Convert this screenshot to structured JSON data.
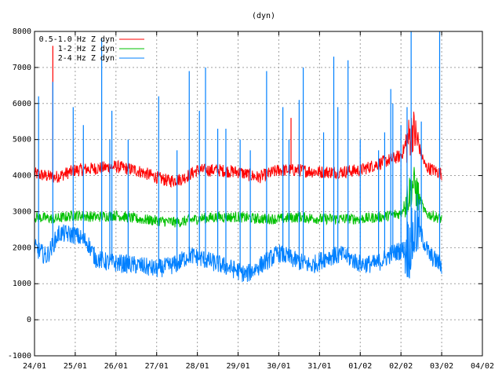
{
  "chart_data": {
    "type": "line",
    "title": "(dyn)",
    "xlabel": "",
    "ylabel": "",
    "ylim": [
      -1000,
      8000
    ],
    "yticks": [
      -1000,
      0,
      1000,
      2000,
      3000,
      4000,
      5000,
      6000,
      7000,
      8000
    ],
    "xlim": [
      "24/01",
      "04/02"
    ],
    "xticks": [
      "24/01",
      "25/01",
      "26/01",
      "27/01",
      "28/01",
      "29/01",
      "30/01",
      "31/01",
      "01/02",
      "02/02",
      "03/02",
      "04/02"
    ],
    "grid": true,
    "legend_position": "top-left",
    "series": [
      {
        "name": "0.5-1.0 Hz Z dyn",
        "color": "#ff0000",
        "x_days": [
          0,
          0.5,
          1,
          1.5,
          2,
          2.5,
          3,
          3.3,
          3.6,
          4,
          4.5,
          5,
          5.5,
          6,
          6.5,
          7,
          7.5,
          8,
          8.5,
          9,
          9.3,
          9.6,
          10
        ],
        "values": [
          4050,
          3950,
          4150,
          4200,
          4250,
          4150,
          3950,
          3850,
          3900,
          4150,
          4150,
          4100,
          3950,
          4150,
          4150,
          4100,
          4100,
          4150,
          4350,
          4550,
          5300,
          4250,
          4050
        ]
      },
      {
        "name": "1-2 Hz Z dyn",
        "color": "#00c000",
        "x_days": [
          0,
          0.5,
          1,
          1.5,
          2,
          2.5,
          3,
          3.5,
          4,
          4.5,
          5,
          5.5,
          6,
          6.5,
          7,
          7.5,
          8,
          8.5,
          9,
          9.3,
          9.6,
          10
        ],
        "values": [
          2850,
          2800,
          2900,
          2850,
          2900,
          2800,
          2750,
          2700,
          2800,
          2850,
          2850,
          2800,
          2800,
          2850,
          2800,
          2800,
          2800,
          2850,
          2950,
          3800,
          2950,
          2800
        ]
      },
      {
        "name": "2-4 Hz Z dyn",
        "color": "#0080ff",
        "x_days": [
          0,
          0.3,
          0.6,
          1,
          1.3,
          1.5,
          1.8,
          2.2,
          2.6,
          3,
          3.5,
          3.8,
          4.1,
          4.5,
          4.9,
          5.2,
          5.6,
          6,
          6.4,
          6.8,
          7.2,
          7.6,
          8,
          8.4,
          8.8,
          9.2,
          9.4,
          9.7,
          10
        ],
        "values": [
          2000,
          1750,
          2400,
          2350,
          2150,
          1700,
          1600,
          1550,
          1500,
          1400,
          1550,
          1800,
          1700,
          1550,
          1400,
          1250,
          1550,
          1850,
          1650,
          1500,
          1750,
          1800,
          1550,
          1550,
          1850,
          2000,
          2600,
          1800,
          1500
        ]
      }
    ],
    "spikes": [
      {
        "series": 2,
        "x_days": 0.1,
        "value": 6200
      },
      {
        "series": 2,
        "x_days": 0.45,
        "value": 6600
      },
      {
        "series": 0,
        "x_days": 0.45,
        "value": 7600
      },
      {
        "series": 2,
        "x_days": 0.95,
        "value": 5900
      },
      {
        "series": 2,
        "x_days": 1.2,
        "value": 5400
      },
      {
        "series": 2,
        "x_days": 1.65,
        "value": 7800
      },
      {
        "series": 2,
        "x_days": 1.85,
        "value": 5000
      },
      {
        "series": 2,
        "x_days": 1.9,
        "value": 5800
      },
      {
        "series": 2,
        "x_days": 2.3,
        "value": 5000
      },
      {
        "series": 2,
        "x_days": 3.05,
        "value": 6200
      },
      {
        "series": 2,
        "x_days": 3.5,
        "value": 4700
      },
      {
        "series": 2,
        "x_days": 3.8,
        "value": 6900
      },
      {
        "series": 2,
        "x_days": 4.05,
        "value": 5800
      },
      {
        "series": 2,
        "x_days": 4.2,
        "value": 7000
      },
      {
        "series": 2,
        "x_days": 4.5,
        "value": 5300
      },
      {
        "series": 2,
        "x_days": 4.7,
        "value": 5300
      },
      {
        "series": 2,
        "x_days": 5.05,
        "value": 5000
      },
      {
        "series": 2,
        "x_days": 5.3,
        "value": 4700
      },
      {
        "series": 2,
        "x_days": 5.7,
        "value": 6900
      },
      {
        "series": 2,
        "x_days": 6.1,
        "value": 5900
      },
      {
        "series": 2,
        "x_days": 6.25,
        "value": 5000
      },
      {
        "series": 0,
        "x_days": 6.3,
        "value": 5600
      },
      {
        "series": 2,
        "x_days": 6.5,
        "value": 6100
      },
      {
        "series": 2,
        "x_days": 6.6,
        "value": 7000
      },
      {
        "series": 2,
        "x_days": 7.1,
        "value": 5200
      },
      {
        "series": 2,
        "x_days": 7.35,
        "value": 7300
      },
      {
        "series": 2,
        "x_days": 7.45,
        "value": 5900
      },
      {
        "series": 2,
        "x_days": 7.7,
        "value": 7200
      },
      {
        "series": 2,
        "x_days": 8.0,
        "value": 5000
      },
      {
        "series": 2,
        "x_days": 8.45,
        "value": 4700
      },
      {
        "series": 2,
        "x_days": 8.6,
        "value": 5200
      },
      {
        "series": 2,
        "x_days": 8.75,
        "value": 6400
      },
      {
        "series": 2,
        "x_days": 8.8,
        "value": 6000
      },
      {
        "series": 2,
        "x_days": 9.0,
        "value": 5400
      },
      {
        "series": 2,
        "x_days": 9.15,
        "value": 5900
      },
      {
        "series": 2,
        "x_days": 9.25,
        "value": 8000
      },
      {
        "series": 2,
        "x_days": 9.5,
        "value": 5500
      },
      {
        "series": 2,
        "x_days": 9.95,
        "value": 8000
      }
    ]
  }
}
